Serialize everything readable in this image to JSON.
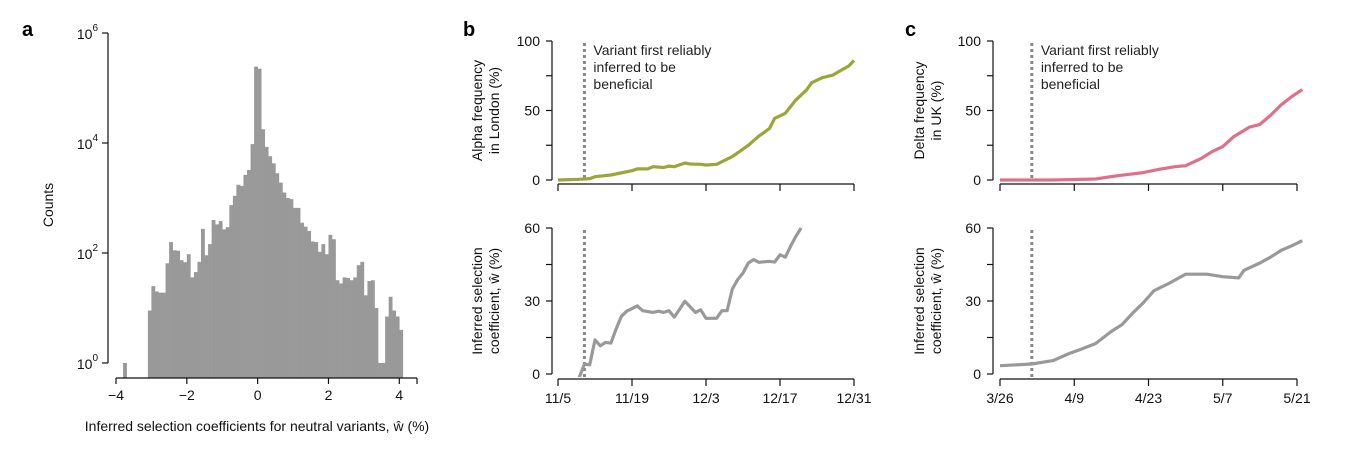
{
  "panels": {
    "a": "a",
    "b": "b",
    "c": "c"
  },
  "annotation": [
    "Variant first reliably",
    "inferred to be",
    "beneficial"
  ],
  "chart_data": [
    {
      "id": "a",
      "type": "bar",
      "subtype": "histogram",
      "xlabel": "Inferred selection coefficients for neutral variants, ŵ (%)",
      "ylabel": "Counts",
      "yscale": "log",
      "xlim": [
        -4,
        4.5
      ],
      "ylim": [
        0.55,
        1000000
      ],
      "xticks": [
        -4,
        -2,
        0,
        2,
        4
      ],
      "xtick_labels": [
        "−4",
        "−2",
        "0",
        "2",
        "4"
      ],
      "yticks": [
        1,
        100,
        10000,
        1000000
      ],
      "ytick_labels": [
        {
          "base": "10",
          "exp": "0"
        },
        {
          "base": "10",
          "exp": "2"
        },
        {
          "base": "10",
          "exp": "4"
        },
        {
          "base": "10",
          "exp": "6"
        }
      ],
      "bar_color": "#999999",
      "bin_width": 0.1,
      "bins": [
        {
          "x0": -3.8,
          "count": 1
        },
        {
          "x0": -3.1,
          "count": 9
        },
        {
          "x0": -3.0,
          "count": 25
        },
        {
          "x0": -2.9,
          "count": 20
        },
        {
          "x0": -2.8,
          "count": 19
        },
        {
          "x0": -2.7,
          "count": 19
        },
        {
          "x0": -2.6,
          "count": 65
        },
        {
          "x0": -2.5,
          "count": 158
        },
        {
          "x0": -2.4,
          "count": 112
        },
        {
          "x0": -2.3,
          "count": 110
        },
        {
          "x0": -2.2,
          "count": 74
        },
        {
          "x0": -2.1,
          "count": 68
        },
        {
          "x0": -2.0,
          "count": 95
        },
        {
          "x0": -1.9,
          "count": 36
        },
        {
          "x0": -1.8,
          "count": 45
        },
        {
          "x0": -1.7,
          "count": 69
        },
        {
          "x0": -1.6,
          "count": 275
        },
        {
          "x0": -1.5,
          "count": 91
        },
        {
          "x0": -1.4,
          "count": 145
        },
        {
          "x0": -1.3,
          "count": 398
        },
        {
          "x0": -1.2,
          "count": 331
        },
        {
          "x0": -1.1,
          "count": 380
        },
        {
          "x0": -1.0,
          "count": 269
        },
        {
          "x0": -0.9,
          "count": 295
        },
        {
          "x0": -0.8,
          "count": 741
        },
        {
          "x0": -0.7,
          "count": 1096
        },
        {
          "x0": -0.6,
          "count": 1738
        },
        {
          "x0": -0.5,
          "count": 1660
        },
        {
          "x0": -0.4,
          "count": 2630
        },
        {
          "x0": -0.3,
          "count": 3236
        },
        {
          "x0": -0.2,
          "count": 9550
        },
        {
          "x0": -0.1,
          "count": 245000
        },
        {
          "x0": 0.0,
          "count": 224000
        },
        {
          "x0": 0.1,
          "count": 17800
        },
        {
          "x0": 0.2,
          "count": 8510
        },
        {
          "x0": 0.3,
          "count": 5750
        },
        {
          "x0": 0.4,
          "count": 4270
        },
        {
          "x0": 0.5,
          "count": 2820
        },
        {
          "x0": 0.6,
          "count": 1905
        },
        {
          "x0": 0.7,
          "count": 1259
        },
        {
          "x0": 0.8,
          "count": 1000
        },
        {
          "x0": 0.9,
          "count": 955
        },
        {
          "x0": 1.0,
          "count": 661
        },
        {
          "x0": 1.1,
          "count": 661
        },
        {
          "x0": 1.2,
          "count": 355
        },
        {
          "x0": 1.3,
          "count": 302
        },
        {
          "x0": 1.4,
          "count": 251
        },
        {
          "x0": 1.5,
          "count": 162
        },
        {
          "x0": 1.6,
          "count": 158
        },
        {
          "x0": 1.7,
          "count": 105
        },
        {
          "x0": 1.8,
          "count": 145
        },
        {
          "x0": 1.9,
          "count": 95
        },
        {
          "x0": 2.0,
          "count": 214
        },
        {
          "x0": 2.1,
          "count": 178
        },
        {
          "x0": 2.2,
          "count": 32
        },
        {
          "x0": 2.3,
          "count": 28
        },
        {
          "x0": 2.4,
          "count": 36
        },
        {
          "x0": 2.5,
          "count": 35
        },
        {
          "x0": 2.6,
          "count": 32
        },
        {
          "x0": 2.7,
          "count": 36
        },
        {
          "x0": 2.8,
          "count": 60
        },
        {
          "x0": 2.9,
          "count": 69
        },
        {
          "x0": 3.0,
          "count": 17
        },
        {
          "x0": 3.1,
          "count": 31
        },
        {
          "x0": 3.2,
          "count": 32
        },
        {
          "x0": 3.3,
          "count": 10
        },
        {
          "x0": 3.4,
          "count": 1
        },
        {
          "x0": 3.5,
          "count": 1
        },
        {
          "x0": 3.6,
          "count": 7
        },
        {
          "x0": 3.7,
          "count": 16
        },
        {
          "x0": 3.8,
          "count": 9
        },
        {
          "x0": 3.9,
          "count": 7
        },
        {
          "x0": 4.0,
          "count": 4
        }
      ]
    },
    {
      "id": "b-top",
      "type": "line",
      "ylabel": [
        "Alpha frequency",
        "in London (%)"
      ],
      "xlim": [
        "11/5",
        "12/31"
      ],
      "ylim": [
        0,
        100
      ],
      "yticks": [
        0,
        25,
        50,
        75,
        100
      ],
      "ytick_labels": {
        "0": "0",
        "50": "50",
        "100": "100"
      },
      "xticks": [
        "11/5",
        "11/19",
        "12/3",
        "12/17",
        "12/31"
      ],
      "marker_date": "11/10",
      "color": "#9aa53a",
      "points": [
        [
          "11/5",
          0
        ],
        [
          "11/9",
          0.5
        ],
        [
          "11/11",
          1
        ],
        [
          "11/12",
          2.4
        ],
        [
          "11/15",
          3.6
        ],
        [
          "11/19",
          6.7
        ],
        [
          "11/20",
          8
        ],
        [
          "11/22",
          8
        ],
        [
          "11/23",
          9.6
        ],
        [
          "11/25",
          9
        ],
        [
          "11/26",
          10
        ],
        [
          "11/27",
          9.6
        ],
        [
          "11/29",
          12.2
        ],
        [
          "11/30",
          11.5
        ],
        [
          "12/2",
          11.3
        ],
        [
          "12/3",
          10.8
        ],
        [
          "12/5",
          11.3
        ],
        [
          "12/8",
          16.8
        ],
        [
          "12/11",
          25
        ],
        [
          "12/13",
          31.6
        ],
        [
          "12/15",
          37
        ],
        [
          "12/16",
          44.4
        ],
        [
          "12/18",
          48
        ],
        [
          "12/20",
          57.6
        ],
        [
          "12/22",
          64.7
        ],
        [
          "12/23",
          70
        ],
        [
          "12/25",
          73.6
        ],
        [
          "12/27",
          75.5
        ],
        [
          "12/28",
          77.7
        ],
        [
          "12/30",
          82
        ],
        [
          "12/31",
          86
        ]
      ]
    },
    {
      "id": "b-bottom",
      "type": "line",
      "ylabel": [
        "Inferred selection",
        "coefficient, ŵ (%)"
      ],
      "xlim": [
        "11/5",
        "12/31"
      ],
      "ylim": [
        0,
        60
      ],
      "yticks": [
        0,
        15,
        30,
        45,
        60
      ],
      "ytick_labels": {
        "0": "0",
        "30": "30",
        "60": "60"
      },
      "xticks": [
        "11/5",
        "11/19",
        "12/3",
        "12/17",
        "12/31"
      ],
      "xtick_labels": [
        "11/5",
        "11/19",
        "12/3",
        "12/17",
        "12/31"
      ],
      "marker_date": "11/10",
      "color": "#999999",
      "points": [
        [
          "11/9",
          -1.5
        ],
        [
          "11/10",
          4
        ],
        [
          "11/11",
          3.8
        ],
        [
          "11/12",
          14
        ],
        [
          "11/13",
          11.6
        ],
        [
          "11/14",
          13
        ],
        [
          "11/15",
          12.7
        ],
        [
          "11/16",
          18.5
        ],
        [
          "11/17",
          23.7
        ],
        [
          "11/18",
          25.8
        ],
        [
          "11/20",
          28
        ],
        [
          "11/21",
          26
        ],
        [
          "11/23",
          25.3
        ],
        [
          "11/24",
          25.8
        ],
        [
          "11/25",
          25.3
        ],
        [
          "11/26",
          26
        ],
        [
          "11/27",
          23.4
        ],
        [
          "11/29",
          29.9
        ],
        [
          "12/1",
          25.3
        ],
        [
          "12/2",
          26.4
        ],
        [
          "12/3",
          22.9
        ],
        [
          "12/5",
          22.9
        ],
        [
          "12/6",
          26
        ],
        [
          "12/7",
          26
        ],
        [
          "12/8",
          35
        ],
        [
          "12/9",
          38.8
        ],
        [
          "12/10",
          41.5
        ],
        [
          "12/11",
          45.6
        ],
        [
          "12/12",
          47
        ],
        [
          "12/13",
          45.9
        ],
        [
          "12/15",
          46.3
        ],
        [
          "12/16",
          46
        ],
        [
          "12/17",
          49
        ],
        [
          "12/18",
          48
        ],
        [
          "12/19",
          52.5
        ],
        [
          "12/20",
          56.6
        ],
        [
          "12/21",
          60
        ]
      ]
    },
    {
      "id": "c-top",
      "type": "line",
      "ylabel": [
        "Delta frequency",
        "in UK (%)"
      ],
      "xlim": [
        "3/26",
        "5/21"
      ],
      "ylim": [
        0,
        100
      ],
      "yticks": [
        0,
        25,
        50,
        75,
        100
      ],
      "ytick_labels": {
        "0": "0",
        "50": "50",
        "100": "100"
      },
      "xticks": [
        "3/26",
        "4/9",
        "4/23",
        "5/7",
        "5/21"
      ],
      "marker_date": "4/1",
      "color": "#e0708a",
      "points": [
        [
          "3/26",
          0
        ],
        [
          "4/5",
          0
        ],
        [
          "4/13",
          0.7
        ],
        [
          "4/17",
          3
        ],
        [
          "4/22",
          5.3
        ],
        [
          "4/25",
          7.7
        ],
        [
          "4/28",
          9.6
        ],
        [
          "4/30",
          10.3
        ],
        [
          "5/3",
          15.6
        ],
        [
          "5/5",
          20.4
        ],
        [
          "5/7",
          24
        ],
        [
          "5/9",
          31
        ],
        [
          "5/12",
          38
        ],
        [
          "5/14",
          40
        ],
        [
          "5/16",
          46.5
        ],
        [
          "5/18",
          54
        ],
        [
          "5/20",
          60
        ],
        [
          "5/22",
          65
        ]
      ]
    },
    {
      "id": "c-bottom",
      "type": "line",
      "ylabel": [
        "Inferred selection",
        "coefficient, ŵ (%)"
      ],
      "xlim": [
        "3/26",
        "5/21"
      ],
      "ylim": [
        0,
        60
      ],
      "yticks": [
        0,
        15,
        30,
        45,
        60
      ],
      "ytick_labels": {
        "0": "0",
        "30": "30",
        "60": "60"
      },
      "xticks": [
        "3/26",
        "4/9",
        "4/23",
        "5/7",
        "5/21"
      ],
      "xtick_labels": [
        "3/26",
        "4/9",
        "4/23",
        "5/7",
        "5/21"
      ],
      "marker_date": "4/1",
      "color": "#999999",
      "points": [
        [
          "3/26",
          3.4
        ],
        [
          "4/1",
          4.1
        ],
        [
          "4/5",
          5.5
        ],
        [
          "4/8",
          8.4
        ],
        [
          "4/10",
          10
        ],
        [
          "4/13",
          12.5
        ],
        [
          "4/16",
          17.5
        ],
        [
          "4/18",
          20.3
        ],
        [
          "4/20",
          25
        ],
        [
          "4/22",
          29.2
        ],
        [
          "4/24",
          34.2
        ],
        [
          "4/27",
          37.4
        ],
        [
          "4/30",
          41
        ],
        [
          "5/4",
          41
        ],
        [
          "5/7",
          40
        ],
        [
          "5/10",
          39.5
        ],
        [
          "5/11",
          42.6
        ],
        [
          "5/14",
          45.6
        ],
        [
          "5/16",
          48
        ],
        [
          "5/18",
          50.8
        ],
        [
          "5/20",
          52.7
        ],
        [
          "5/22",
          54.8
        ]
      ]
    }
  ]
}
